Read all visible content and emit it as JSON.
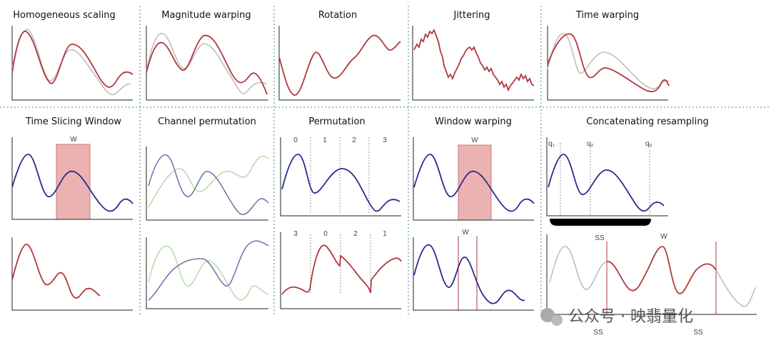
{
  "panels": {
    "homogeneous_scaling": "Homogeneous scaling",
    "magnitude_warping": "Magnitude warping",
    "rotation": "Rotation",
    "jittering": "Jittering",
    "time_warping": "Time warping",
    "time_slicing_window": "Time Slicing Window",
    "channel_permutation": "Channel permutation",
    "permutation": "Permutation",
    "window_warping": "Window warping",
    "concatenating_resampling": "Concatenating resampling"
  },
  "labels": {
    "w": "W",
    "perm_top": [
      "0",
      "1",
      "2",
      "3"
    ],
    "perm_bottom": [
      "3",
      "0",
      "2",
      "1"
    ],
    "q1": "q₁",
    "q2": "q₂",
    "q3": "q₃",
    "ss": "SS"
  },
  "watermark": "公众号 · 映翡量化"
}
